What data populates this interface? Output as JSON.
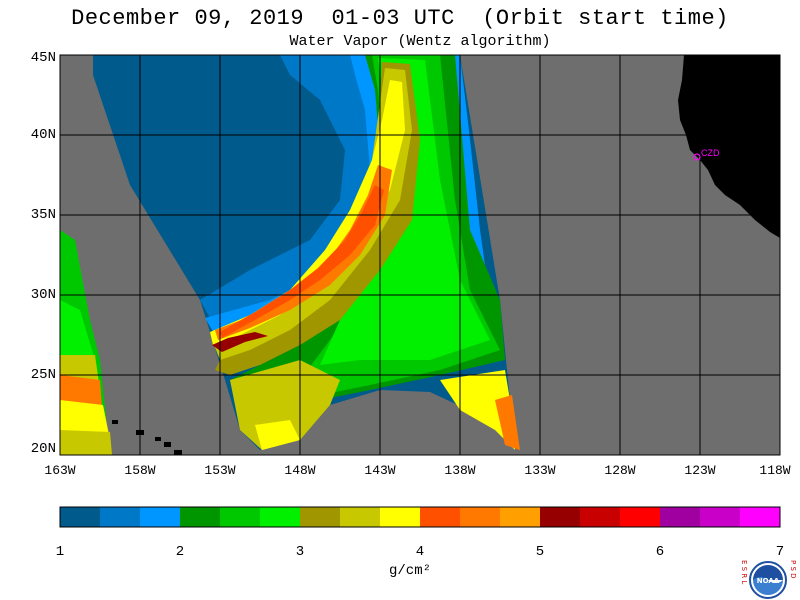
{
  "header": {
    "title": "December 09, 2019  01-03 UTC  (Orbit start time)",
    "subtitle": "Water Vapor (Wentz algorithm)"
  },
  "map": {
    "lat_labels": [
      "45N",
      "40N",
      "35N",
      "30N",
      "25N",
      "20N"
    ],
    "lon_labels": [
      "163W",
      "158W",
      "153W",
      "148W",
      "143W",
      "138W",
      "133W",
      "128W",
      "123W",
      "118W"
    ],
    "station_label": "CZD",
    "colors": {
      "nodata": "#6e6e6e",
      "land": "#000000",
      "gridline": "#000000",
      "station": "#ff00ff"
    }
  },
  "colorbar": {
    "ticks": [
      "1",
      "2",
      "3",
      "4",
      "5",
      "6",
      "7"
    ],
    "units": "g/cm²",
    "colors": [
      "#005a8c",
      "#0078c8",
      "#0096ff",
      "#009600",
      "#00c800",
      "#00f000",
      "#a09600",
      "#c8c800",
      "#ffff00",
      "#ff5000",
      "#ff7800",
      "#ffa000",
      "#960000",
      "#c80000",
      "#ff0000",
      "#a000a0",
      "#c800c8",
      "#ff00ff"
    ]
  },
  "logo": {
    "esrl": "E S R L",
    "psd": "P S D",
    "text": "NOAA"
  }
}
